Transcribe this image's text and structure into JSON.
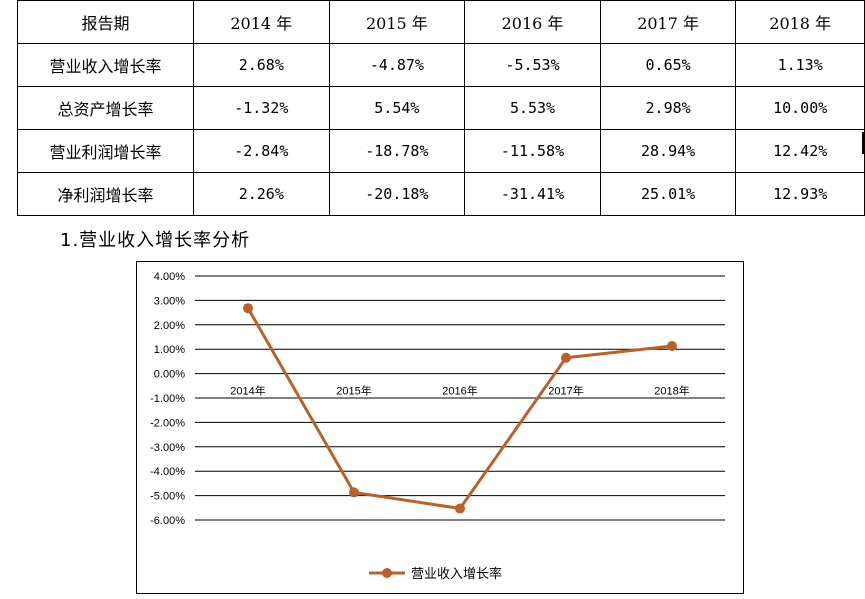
{
  "table": {
    "header": [
      "报告期",
      "2014 年",
      "2015 年",
      "2016 年",
      "2017 年",
      "2018 年"
    ],
    "rows": [
      {
        "label": "营业收入增长率",
        "values": [
          "2.68%",
          "-4.87%",
          "-5.53%",
          "0.65%",
          "1.13%"
        ]
      },
      {
        "label": "总资产增长率",
        "values": [
          "-1.32%",
          "5.54%",
          "5.53%",
          "2.98%",
          "10.00%"
        ]
      },
      {
        "label": "营业利润增长率",
        "values": [
          "-2.84%",
          "-18.78%",
          "-11.58%",
          "28.94%",
          "12.42%"
        ]
      },
      {
        "label": "净利润增长率",
        "values": [
          "2.26%",
          "-20.18%",
          "-31.41%",
          "25.01%",
          "12.93%"
        ]
      }
    ]
  },
  "section": {
    "heading": "1.营业收入增长率分析"
  },
  "chart_data": {
    "type": "line",
    "categories": [
      "2014年",
      "2015年",
      "2016年",
      "2017年",
      "2018年"
    ],
    "series": [
      {
        "name": "营业收入增长率",
        "values": [
          2.68,
          -4.87,
          -5.53,
          0.65,
          1.13
        ],
        "color": "#b8622a"
      }
    ],
    "ylim": [
      -6,
      4
    ],
    "yticks": [
      4,
      3,
      2,
      1,
      0,
      -1,
      -2,
      -3,
      -4,
      -5,
      -6
    ],
    "ytick_labels": [
      "4.00%",
      "3.00%",
      "2.00%",
      "1.00%",
      "0.00%",
      "-1.00%",
      "-2.00%",
      "-3.00%",
      "-4.00%",
      "-5.00%",
      "-6.00%"
    ],
    "grid": true,
    "legend": "bottom",
    "title": "",
    "xlabel": "",
    "ylabel": ""
  }
}
